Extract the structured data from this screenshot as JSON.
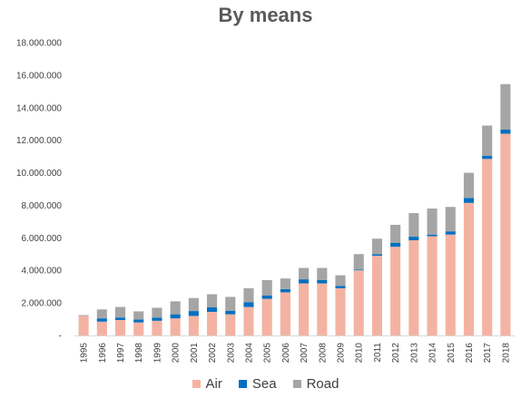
{
  "chart_data": {
    "type": "bar",
    "stacked": true,
    "title": "By means",
    "categories": [
      "1995",
      "1996",
      "1997",
      "1998",
      "1999",
      "2000",
      "2001",
      "2002",
      "2003",
      "2004",
      "2005",
      "2006",
      "2007",
      "2008",
      "2009",
      "2010",
      "2011",
      "2012",
      "2013",
      "2014",
      "2015",
      "2016",
      "2017",
      "2018"
    ],
    "series": [
      {
        "name": "Air",
        "color": "#F4B3A2",
        "values": [
          1200000,
          850000,
          950000,
          800000,
          900000,
          1050000,
          1200000,
          1450000,
          1300000,
          1750000,
          2250000,
          2650000,
          3200000,
          3200000,
          2900000,
          4000000,
          4900000,
          5450000,
          5850000,
          6100000,
          6200000,
          8150000,
          10850000,
          12400000
        ]
      },
      {
        "name": "Sea",
        "color": "#0070C0",
        "values": [
          0,
          200000,
          150000,
          180000,
          200000,
          250000,
          300000,
          280000,
          220000,
          300000,
          200000,
          200000,
          250000,
          200000,
          150000,
          50000,
          100000,
          250000,
          220000,
          100000,
          200000,
          300000,
          200000,
          250000
        ]
      },
      {
        "name": "Road",
        "color": "#A5A5A5",
        "values": [
          50000,
          550000,
          650000,
          500000,
          600000,
          800000,
          800000,
          800000,
          850000,
          850000,
          950000,
          650000,
          700000,
          750000,
          650000,
          950000,
          950000,
          1100000,
          1450000,
          1600000,
          1500000,
          1550000,
          1850000,
          2800000
        ]
      }
    ],
    "ylim": [
      0,
      18000000
    ],
    "yticks": [
      0,
      2000000,
      4000000,
      6000000,
      8000000,
      10000000,
      12000000,
      14000000,
      16000000,
      18000000
    ],
    "ytick_labels": [
      "-",
      "2.000.000",
      "4.000.000",
      "6.000.000",
      "8.000.000",
      "10.000.000",
      "12.000.000",
      "14.000.000",
      "16.000.000",
      "18.000.000"
    ],
    "xlabel": "",
    "ylabel": "",
    "grid": false,
    "legend_position": "bottom"
  },
  "legend": [
    {
      "label": "Air",
      "color": "#F4B3A2"
    },
    {
      "label": "Sea",
      "color": "#0070C0"
    },
    {
      "label": "Road",
      "color": "#A5A5A5"
    }
  ]
}
